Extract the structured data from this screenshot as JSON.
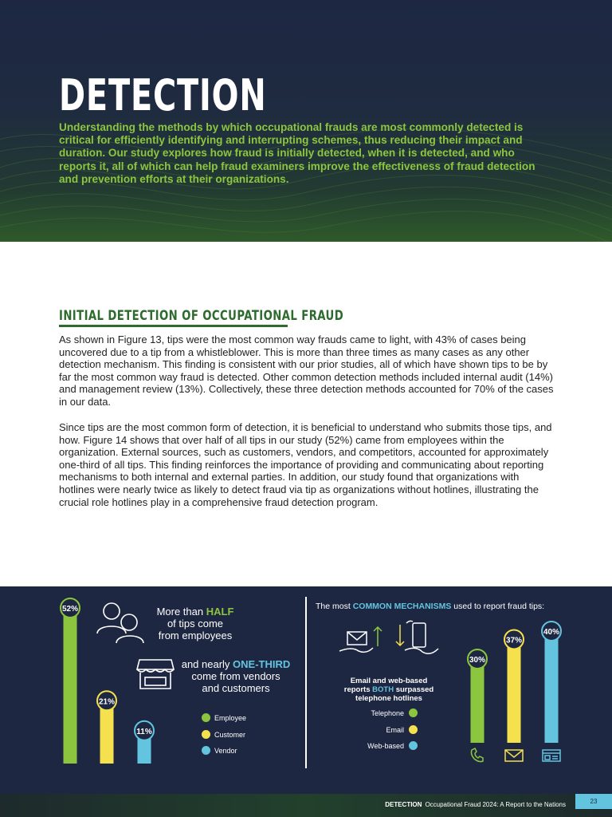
{
  "header": {
    "title": "DETECTION",
    "intro": "Understanding the methods by which occupational frauds are most commonly detected is critical for efficiently identifying and interrupting schemes, thus reducing their impact and duration. Our study explores how fraud is initially detected, when it is detected, and who reports it, all of which can help fraud examiners improve the effectiveness of fraud detection and prevention efforts at their organizations."
  },
  "section": {
    "title": "INITIAL DETECTION OF OCCUPATIONAL FRAUD",
    "para1": "As shown in Figure 13, tips were the most common way frauds came to light, with 43% of cases being uncovered due to a tip from a whistleblower. This is more than three times as many cases as any other detection mechanism. This finding is consistent with our prior studies, all of which have shown tips to be by far the most common way fraud is detected. Other common detection methods included internal audit (14%) and management review (13%). Collectively, these three detection methods accounted for 70% of the cases in our data.",
    "para2": "Since tips are the most common form of detection, it is beneficial to understand who submits those tips, and how. Figure 14 shows that over half of all tips in our study (52%) came from employees within the organization. External sources, such as customers, vendors, and competitors, accounted for approximately one-third of all tips. This finding reinforces the importance of providing and communicating about reporting mechanisms to both internal and external parties. In addition, our study found that organizations with hotlines were nearly twice as likely to detect fraud via tip as organizations without hotlines, illustrating the crucial role hotlines play in a comprehensive fraud detection program."
  },
  "infographic": {
    "left_text1": {
      "pre": "More than ",
      "hl": "HALF",
      "post1": "of tips come",
      "post2": "from employees"
    },
    "left_text2": {
      "pre": "and nearly ",
      "hl": "ONE-THIRD",
      "post1": "come from vendors",
      "post2": "and customers"
    },
    "right_title": {
      "pre": "The most ",
      "hl": "COMMON MECHANISMS",
      "post": " used to report fraud tips:"
    },
    "right_note": {
      "line1": "Email and web-based",
      "pre2": "reports ",
      "hl2": "BOTH",
      "post2": " surpassed",
      "line3": "telephone hotlines"
    }
  },
  "chart_data": [
    {
      "type": "bar",
      "categories": [
        "Employee",
        "Customer",
        "Vendor"
      ],
      "values": [
        52,
        21,
        11
      ],
      "labels": [
        "52%",
        "21%",
        "11%"
      ],
      "colors": [
        "#8cc63f",
        "#f5e04e",
        "#62c4df"
      ],
      "legend": [
        "Employee",
        "Customer",
        "Vendor"
      ]
    },
    {
      "type": "bar",
      "categories": [
        "Telephone",
        "Email",
        "Web-based"
      ],
      "values": [
        30,
        37,
        40
      ],
      "labels": [
        "30%",
        "37%",
        "40%"
      ],
      "colors": [
        "#8cc63f",
        "#f5e04e",
        "#62c4df"
      ],
      "legend": [
        "Telephone",
        "Email",
        "Web-based"
      ],
      "icons": [
        "phone-icon",
        "envelope-icon",
        "web-form-icon"
      ]
    }
  ],
  "footer": {
    "section": "DETECTION",
    "report": "Occupational Fraud 2024: A Report to the Nations",
    "page": "23"
  }
}
